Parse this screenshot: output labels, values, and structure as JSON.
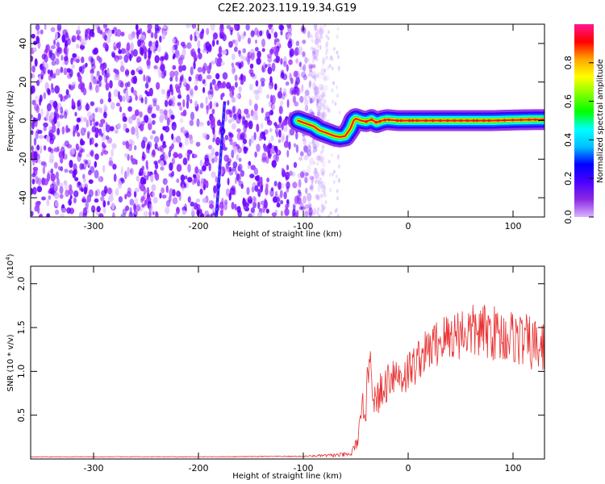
{
  "figure": {
    "title": "C2E2.2023.119.19.34.G19"
  },
  "chart_data": [
    {
      "type": "heatmap",
      "xlabel": "Height of straight line (km)",
      "ylabel": "Frequency (Hz)",
      "xlim": [
        -360,
        130
      ],
      "ylim": [
        -50,
        50
      ],
      "xticks": [
        -300,
        -200,
        -100,
        0,
        100
      ],
      "yticks": [
        -40,
        -20,
        0,
        20,
        40
      ],
      "colorbar": {
        "label": "Normalized spectral amplitude",
        "range": [
          0.0,
          1.0
        ],
        "ticks": [
          0.0,
          0.2,
          0.4,
          0.6,
          0.8
        ],
        "colormap": [
          "#d9b3ff",
          "#8a2be2",
          "#4b00ff",
          "#0000ff",
          "#00bfff",
          "#00ffff",
          "#00ff00",
          "#7fff00",
          "#ffff00",
          "#ffa500",
          "#ff0000",
          "#ff1493"
        ]
      },
      "noise_region": {
        "x_range": [
          -360,
          -75
        ],
        "y_range": [
          -50,
          50
        ],
        "typical_amplitude": 0.1
      },
      "signal_trace": {
        "x": [
          -105,
          -100,
          -95,
          -90,
          -85,
          -80,
          -75,
          -70,
          -65,
          -60,
          -55,
          -52,
          -50,
          -45,
          -40,
          -35,
          -30,
          -25,
          -20,
          -10,
          0,
          20,
          40,
          60,
          80,
          100,
          120,
          130
        ],
        "y": [
          0,
          -1,
          -2,
          -3,
          -5,
          -6,
          -7,
          -8,
          -8.5,
          -8,
          -4,
          0,
          1,
          0,
          -0.5,
          0.5,
          -1,
          0,
          0.5,
          0,
          0,
          0,
          0,
          0,
          0,
          0.3,
          0.5,
          0.5
        ],
        "peak_amplitude": 0.95
      },
      "streak": {
        "x": [
          -183,
          -175
        ],
        "y": [
          -50,
          10
        ],
        "amplitude": 0.3
      }
    },
    {
      "type": "line",
      "xlabel": "Height of straight line (km)",
      "ylabel": "SNR (10 * v/v)",
      "yunit": "(x10",
      "yunit_exp": "4",
      "yunit_close": ")",
      "xlim": [
        -360,
        130
      ],
      "ylim": [
        0,
        22000
      ],
      "xticks": [
        -300,
        -200,
        -100,
        0,
        100
      ],
      "yticks": [
        5000,
        10000,
        15000,
        20000
      ],
      "ytick_labels": [
        "0.5",
        "1.0",
        "1.5",
        "2.0"
      ],
      "color": "#e83030",
      "series": [
        {
          "x": [
            -360,
            -300,
            -200,
            -100,
            -55,
            -50,
            -45,
            -42,
            -40,
            -38,
            -36,
            -35,
            -32,
            -30,
            -28,
            -25,
            -20,
            -15,
            -10,
            -5,
            0,
            5,
            10,
            15,
            20,
            25,
            30,
            40,
            50,
            60,
            70,
            80,
            90,
            100,
            110,
            120,
            130
          ],
          "y": [
            250,
            250,
            250,
            300,
            500,
            1500,
            4000,
            7000,
            6000,
            10000,
            13500,
            9000,
            7000,
            5000,
            8000,
            7000,
            9000,
            10000,
            9500,
            9500,
            10000,
            10500,
            11500,
            12000,
            12500,
            13000,
            13500,
            14000,
            14500,
            14500,
            14500,
            14500,
            14000,
            14000,
            13500,
            13000,
            12500
          ],
          "noise": [
            40,
            40,
            40,
            60,
            300,
            800,
            1500,
            2500,
            2500,
            2500,
            2000,
            2000,
            2000,
            2500,
            2500,
            2500,
            2500,
            2500,
            2500,
            2500,
            2500,
            2500,
            2500,
            2500,
            2500,
            2800,
            3000,
            3000,
            3200,
            3200,
            3200,
            3200,
            3200,
            3200,
            3200,
            3200,
            3200
          ]
        }
      ]
    }
  ]
}
